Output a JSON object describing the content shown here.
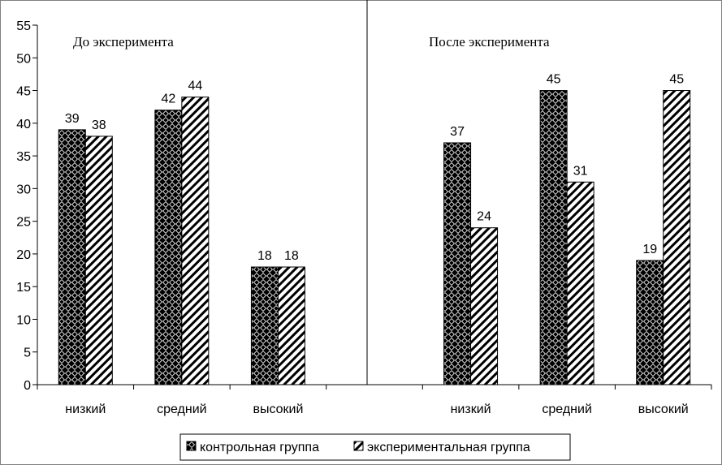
{
  "chart_data": {
    "type": "bar",
    "ylim": [
      0,
      55
    ],
    "y_ticks": [
      0,
      5,
      10,
      15,
      20,
      25,
      30,
      35,
      40,
      45,
      50,
      55
    ],
    "grid": false,
    "legend_position": "bottom",
    "panels": [
      {
        "title": "До эксперимента",
        "categories": [
          "низкий",
          "средний",
          "высокий"
        ],
        "series": [
          {
            "name": "контрольная группа",
            "values": [
              39,
              42,
              18
            ]
          },
          {
            "name": "экспериментальная группа",
            "values": [
              38,
              44,
              18
            ]
          }
        ]
      },
      {
        "title": "После эксперимента",
        "categories": [
          "низкий",
          "средний",
          "высокий"
        ],
        "series": [
          {
            "name": "контрольная группа",
            "values": [
              37,
              45,
              19
            ]
          },
          {
            "name": "экспериментальная группа",
            "values": [
              24,
              31,
              45
            ]
          }
        ]
      }
    ],
    "legend": [
      {
        "label": "контрольная группа",
        "pattern": "checker"
      },
      {
        "label": "экспериментальная группа",
        "pattern": "diagonal"
      }
    ]
  }
}
